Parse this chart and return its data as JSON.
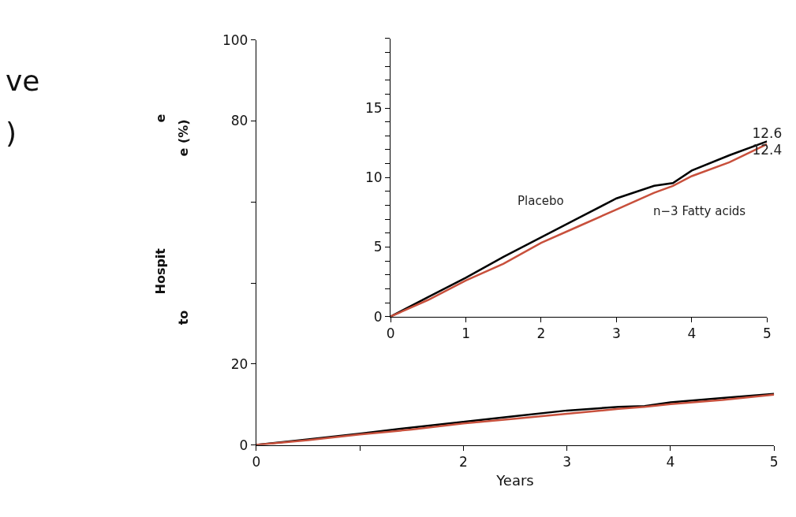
{
  "chart_data": [
    {
      "type": "line",
      "xlabel": "Years",
      "annotations": [
        "ve",
        ")",
        "Hospit",
        "e",
        "e (%)",
        "to"
      ],
      "xlim": [
        0,
        5
      ],
      "xticks": [
        0,
        {
          "value": 1,
          "label": null
        },
        2,
        3,
        4,
        5
      ],
      "ylim": [
        0,
        100
      ],
      "yticks": [
        0,
        20,
        {
          "value": 40,
          "label": null
        },
        {
          "value": 60,
          "label": null
        },
        80,
        100
      ],
      "marker": "none",
      "line_style": "solid",
      "x": [
        0,
        0.5,
        1,
        1.5,
        2,
        2.5,
        3,
        3.5,
        3.75,
        4,
        4.5,
        5
      ],
      "series": [
        {
          "color": "#000000",
          "values": [
            0,
            1.4,
            2.8,
            4.3,
            5.7,
            7.1,
            8.5,
            9.4,
            9.6,
            10.5,
            11.6,
            12.6
          ]
        },
        {
          "color": "#c8503c",
          "values": [
            0,
            1.2,
            2.6,
            3.8,
            5.3,
            6.5,
            7.7,
            8.9,
            9.4,
            10.1,
            11.1,
            12.4
          ]
        }
      ]
    },
    {
      "type": "line",
      "xlim": [
        0,
        5
      ],
      "xticks": [
        0,
        1,
        2,
        3,
        4,
        5
      ],
      "ylim": [
        0,
        20
      ],
      "yticks": [
        0,
        {
          "value": 1,
          "label": null
        },
        {
          "value": 2,
          "label": null
        },
        {
          "value": 3,
          "label": null
        },
        {
          "value": 4,
          "label": null
        },
        5,
        {
          "value": 6,
          "label": null
        },
        {
          "value": 7,
          "label": null
        },
        {
          "value": 8,
          "label": null
        },
        {
          "value": 9,
          "label": null
        },
        10,
        {
          "value": 11,
          "label": null
        },
        {
          "value": 12,
          "label": null
        },
        {
          "value": 13,
          "label": null
        },
        {
          "value": 14,
          "label": null
        },
        15,
        {
          "value": 16,
          "label": null
        },
        {
          "value": 17,
          "label": null
        },
        {
          "value": 18,
          "label": null
        },
        {
          "value": 19,
          "label": null
        },
        {
          "value": 20,
          "label": null
        }
      ],
      "marker": "none",
      "line_style": "solid",
      "x": [
        0,
        0.5,
        1,
        1.5,
        2,
        2.5,
        3,
        3.5,
        3.75,
        4,
        4.5,
        5
      ],
      "series": [
        {
          "name": "Placebo",
          "color": "#000000",
          "values": [
            0,
            1.4,
            2.8,
            4.3,
            5.7,
            7.1,
            8.5,
            9.4,
            9.6,
            10.5,
            11.6,
            12.6
          ],
          "value_labels": [
            null,
            null,
            null,
            null,
            null,
            null,
            null,
            null,
            null,
            null,
            null,
            "12.6"
          ]
        },
        {
          "name": "n−3 Fatty acids",
          "color": "#c8503c",
          "values": [
            0,
            1.2,
            2.6,
            3.8,
            5.3,
            6.5,
            7.7,
            8.9,
            9.4,
            10.1,
            11.1,
            12.4
          ],
          "value_labels": [
            null,
            null,
            null,
            null,
            null,
            null,
            null,
            null,
            null,
            null,
            null,
            "12.4"
          ]
        }
      ]
    }
  ]
}
